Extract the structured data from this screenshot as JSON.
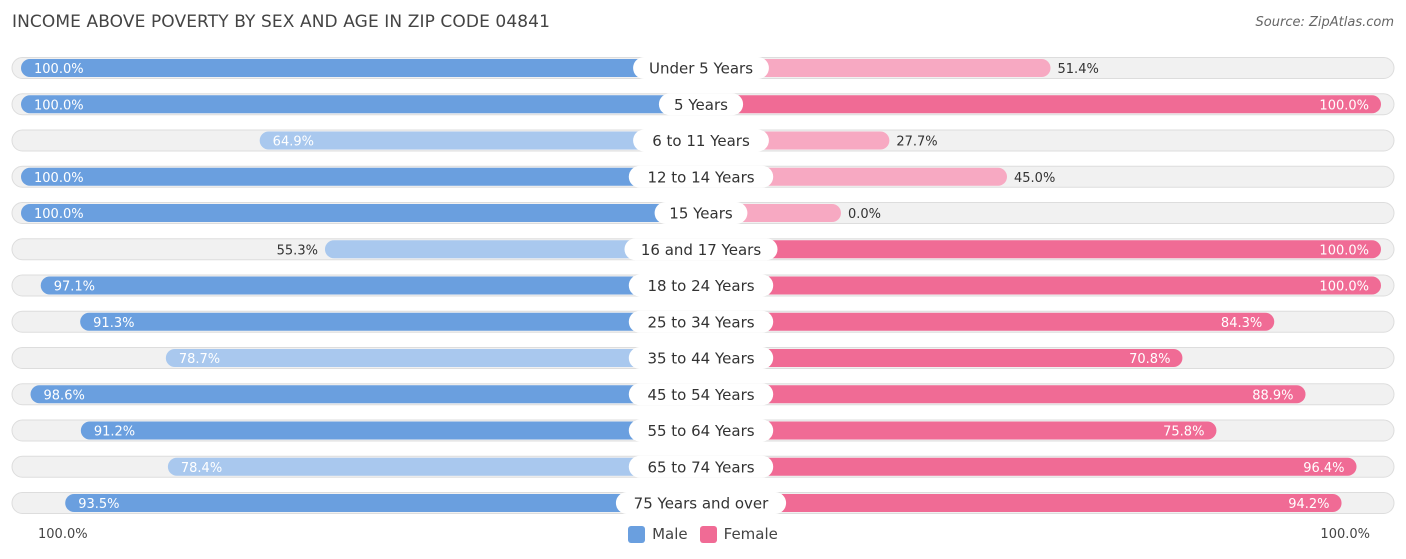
{
  "header": {
    "title": "INCOME ABOVE POVERTY BY SEX AND AGE IN ZIP CODE 04841",
    "source": "Source: ZipAtlas.com"
  },
  "colors": {
    "male_strong": "#6a9fdf",
    "male_light": "#a9c8ee",
    "female_strong": "#f06b95",
    "female_light": "#f7a9c2",
    "track": "#f1f1f1",
    "track_border": "#dddddd"
  },
  "chart_data": {
    "type": "bar",
    "orientation": "diverging-horizontal",
    "title": "INCOME ABOVE POVERTY BY SEX AND AGE IN ZIP CODE 04841",
    "categories": [
      "Under 5 Years",
      "5 Years",
      "6 to 11 Years",
      "12 to 14 Years",
      "15 Years",
      "16 and 17 Years",
      "18 to 24 Years",
      "25 to 34 Years",
      "35 to 44 Years",
      "45 to 54 Years",
      "55 to 64 Years",
      "65 to 74 Years",
      "75 Years and over"
    ],
    "series": [
      {
        "name": "Male",
        "values": [
          100.0,
          100.0,
          64.9,
          100.0,
          100.0,
          55.3,
          97.1,
          91.3,
          78.7,
          98.6,
          91.2,
          78.4,
          93.5
        ]
      },
      {
        "name": "Female",
        "values": [
          51.4,
          100.0,
          27.7,
          45.0,
          0.0,
          100.0,
          100.0,
          84.3,
          70.8,
          88.9,
          75.8,
          96.4,
          94.2
        ]
      }
    ],
    "labels": {
      "Male": [
        "100.0%",
        "100.0%",
        "64.9%",
        "100.0%",
        "100.0%",
        "55.3%",
        "97.1%",
        "91.3%",
        "78.7%",
        "98.6%",
        "91.2%",
        "78.4%",
        "93.5%"
      ],
      "Female": [
        "51.4%",
        "100.0%",
        "27.7%",
        "45.0%",
        "0.0%",
        "100.0%",
        "100.0%",
        "84.3%",
        "70.8%",
        "88.9%",
        "75.8%",
        "96.4%",
        "94.2%"
      ]
    },
    "xlim": [
      0,
      100
    ],
    "axis_left_label": "100.0%",
    "axis_right_label": "100.0%",
    "legend": [
      "Male",
      "Female"
    ],
    "legend_position": "bottom-center"
  }
}
